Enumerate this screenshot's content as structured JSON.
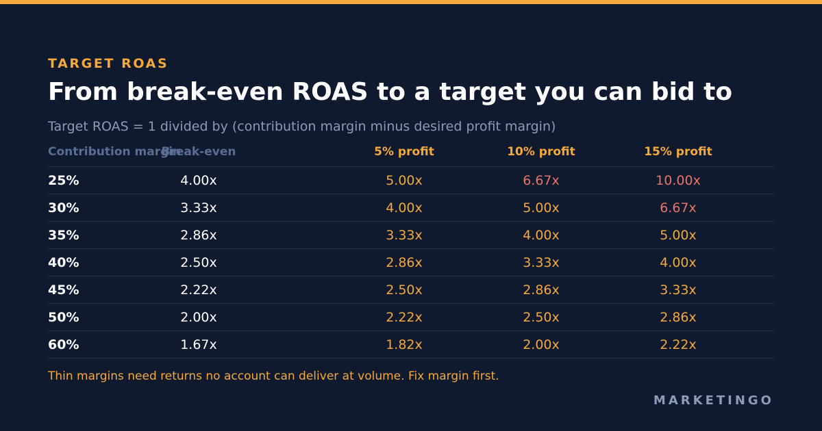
{
  "eyebrow": "TARGET ROAS",
  "title": "From break-even ROAS to a target you can bid to",
  "subtitle": "Target ROAS = 1 divided by (contribution margin minus desired profit margin)",
  "footnote": "Thin margins need returns no account can deliver at volume. Fix margin first.",
  "brand": "MARKETINGO",
  "colors": {
    "background": "#0f1a2e",
    "accent": "#f5a93a",
    "high_value": "#e8756a",
    "muted_header": "#5a6e95",
    "text": "#ffffff"
  },
  "chart_data": {
    "type": "table",
    "columns": [
      "Contribution margin",
      "Break-even",
      "5% profit",
      "10% profit",
      "15% profit"
    ],
    "rows": [
      {
        "margin": "25%",
        "values": [
          "4.00x",
          "5.00x",
          "6.67x",
          "10.00x"
        ],
        "high": [
          false,
          false,
          true,
          true
        ]
      },
      {
        "margin": "30%",
        "values": [
          "3.33x",
          "4.00x",
          "5.00x",
          "6.67x"
        ],
        "high": [
          false,
          false,
          false,
          true
        ]
      },
      {
        "margin": "35%",
        "values": [
          "2.86x",
          "3.33x",
          "4.00x",
          "5.00x"
        ],
        "high": [
          false,
          false,
          false,
          false
        ]
      },
      {
        "margin": "40%",
        "values": [
          "2.50x",
          "2.86x",
          "3.33x",
          "4.00x"
        ],
        "high": [
          false,
          false,
          false,
          false
        ]
      },
      {
        "margin": "45%",
        "values": [
          "2.22x",
          "2.50x",
          "2.86x",
          "3.33x"
        ],
        "high": [
          false,
          false,
          false,
          false
        ]
      },
      {
        "margin": "50%",
        "values": [
          "2.00x",
          "2.22x",
          "2.50x",
          "2.86x"
        ],
        "high": [
          false,
          false,
          false,
          false
        ]
      },
      {
        "margin": "60%",
        "values": [
          "1.67x",
          "1.82x",
          "2.00x",
          "2.22x"
        ],
        "high": [
          false,
          false,
          false,
          false
        ]
      }
    ]
  }
}
